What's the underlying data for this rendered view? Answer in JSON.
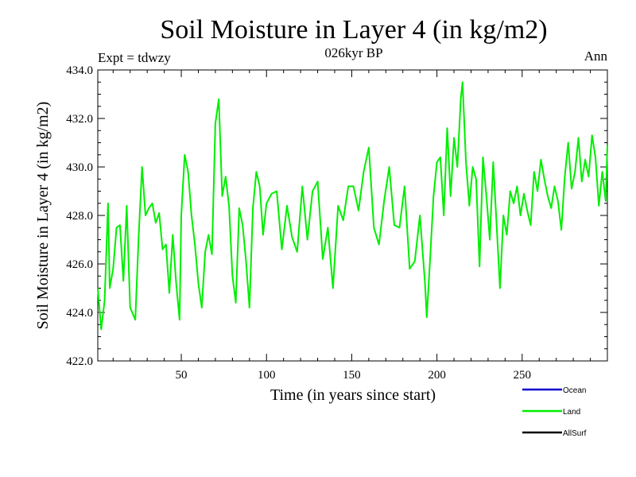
{
  "chart_data": {
    "type": "line",
    "title": "Soil Moisture in Layer 4 (in kg/m2)",
    "subtitle": "026kyr BP",
    "left_label": "Expt = tdwzy",
    "right_label": "Ann",
    "xlabel": "Time (in years since start)",
    "ylabel": "Soil Moisture in Layer 4 (in kg/m2)",
    "xlim": [
      1,
      300
    ],
    "ylim": [
      422.0,
      434.0
    ],
    "x_ticks": [
      50,
      100,
      150,
      200,
      250
    ],
    "x_tick_labels": [
      "50",
      "100",
      "150",
      "200",
      "250"
    ],
    "y_ticks": [
      422,
      424,
      426,
      428,
      430,
      432,
      434
    ],
    "y_tick_labels": [
      "422.0",
      "424.0",
      "426.0",
      "428.0",
      "430.0",
      "432.0",
      "434.0"
    ],
    "legend": [
      {
        "name": "Ocean",
        "color": "#0000cc"
      },
      {
        "name": "Land",
        "color": "#00ee00"
      },
      {
        "name": "AllSurf",
        "color": "#000000"
      }
    ],
    "legend_position": "bottom-right",
    "series": [
      {
        "name": "Land",
        "color": "#00ee00",
        "x": [
          1,
          3,
          5,
          7,
          8,
          10,
          12,
          14,
          16,
          18,
          20,
          23,
          25,
          27,
          29,
          31,
          33,
          35,
          37,
          39,
          41,
          43,
          45,
          47,
          49,
          50,
          52,
          54,
          56,
          58,
          60,
          62,
          64,
          66,
          68,
          70,
          72,
          74,
          76,
          78,
          80,
          82,
          84,
          86,
          88,
          90,
          92,
          94,
          96,
          98,
          100,
          103,
          106,
          109,
          112,
          115,
          118,
          121,
          124,
          127,
          130,
          133,
          136,
          139,
          142,
          145,
          148,
          151,
          154,
          157,
          160,
          163,
          166,
          169,
          172,
          175,
          178,
          181,
          184,
          187,
          190,
          193,
          194,
          196,
          198,
          200,
          202,
          204,
          206,
          208,
          210,
          212,
          214,
          215,
          217,
          219,
          221,
          223,
          225,
          227,
          229,
          231,
          233,
          235,
          237,
          239,
          241,
          243,
          245,
          247,
          249,
          251,
          253,
          255,
          257,
          259,
          261,
          263,
          265,
          267,
          269,
          271,
          273,
          275,
          277,
          279,
          281,
          283,
          285,
          287,
          289,
          291,
          293,
          295,
          297,
          299,
          300
        ],
        "values": [
          425.0,
          423.3,
          424.5,
          428.5,
          425.0,
          425.8,
          427.5,
          427.6,
          425.3,
          428.4,
          424.2,
          423.7,
          427.2,
          430.0,
          428.0,
          428.3,
          428.5,
          427.7,
          428.1,
          426.6,
          426.8,
          424.8,
          427.2,
          425.2,
          423.7,
          428.0,
          430.5,
          429.8,
          428.0,
          426.8,
          425.2,
          424.2,
          426.5,
          427.2,
          426.4,
          431.8,
          432.8,
          428.8,
          429.6,
          428.4,
          425.5,
          424.4,
          428.3,
          427.6,
          426.1,
          424.2,
          428.3,
          429.8,
          429.2,
          427.2,
          428.5,
          428.9,
          429.0,
          426.6,
          428.4,
          427.1,
          426.5,
          429.2,
          427.0,
          429.0,
          429.4,
          426.2,
          427.5,
          425.0,
          428.4,
          427.8,
          429.2,
          429.2,
          428.2,
          429.8,
          430.8,
          427.5,
          426.8,
          428.6,
          430.0,
          427.6,
          427.5,
          429.2,
          425.8,
          426.1,
          428.0,
          425.2,
          423.8,
          426.2,
          428.8,
          430.2,
          430.4,
          428.0,
          431.6,
          428.8,
          431.2,
          430.0,
          432.8,
          433.5,
          430.2,
          428.4,
          430.0,
          429.5,
          425.9,
          430.4,
          428.8,
          427.0,
          430.2,
          427.6,
          425.0,
          428.0,
          427.2,
          429.0,
          428.5,
          429.2,
          428.0,
          428.9,
          428.2,
          427.6,
          429.8,
          429.0,
          430.3,
          429.5,
          428.8,
          428.3,
          429.2,
          428.6,
          427.4,
          429.6,
          431.0,
          429.1,
          429.8,
          431.2,
          429.4,
          430.3,
          429.6,
          431.3,
          430.4,
          428.4,
          429.8,
          428.6,
          430.9
        ]
      }
    ]
  }
}
